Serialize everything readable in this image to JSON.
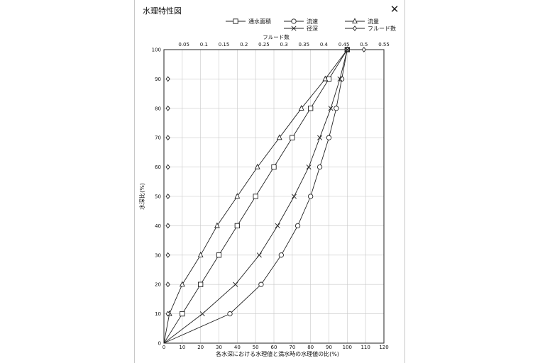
{
  "window": {
    "title": "水理特性図",
    "close_label": "✕"
  },
  "chart_data": {
    "type": "line",
    "title": "",
    "xlabel": "各水深における水理値と満水時の水理値の比(%)",
    "ylabel": "水深比(%)",
    "xlim": [
      0,
      120
    ],
    "ylim": [
      0,
      100
    ],
    "x_ticks": [
      0,
      10,
      20,
      30,
      40,
      50,
      60,
      70,
      80,
      90,
      100,
      110,
      120
    ],
    "y_ticks": [
      0,
      10,
      20,
      30,
      40,
      50,
      60,
      70,
      80,
      90,
      100
    ],
    "top_axis": {
      "label": "フルード数",
      "range": [
        0,
        0.55
      ],
      "ticks": [
        "0.05",
        "0.1",
        "0.15",
        "0.2",
        "0.25",
        "0.3",
        "0.35",
        "0.4",
        "0.45",
        "0.5",
        "0.55"
      ]
    },
    "grid": true,
    "legend_position": "top",
    "series": [
      {
        "name": "通水面積",
        "marker": "square",
        "x": [
          0,
          10,
          20,
          30,
          40,
          50,
          60,
          70,
          80,
          90,
          100
        ],
        "y": [
          0,
          10,
          20,
          30,
          40,
          50,
          60,
          70,
          80,
          90,
          100
        ],
        "line": true
      },
      {
        "name": "流速",
        "marker": "circle",
        "x": [
          0,
          36,
          53,
          64,
          73,
          80,
          85,
          90,
          94,
          97,
          100
        ],
        "y": [
          0,
          10,
          20,
          30,
          40,
          50,
          60,
          70,
          80,
          90,
          100
        ],
        "line": true
      },
      {
        "name": "流量",
        "marker": "triangle",
        "x": [
          0,
          3,
          10,
          20,
          29,
          40,
          51,
          63,
          75,
          88,
          100
        ],
        "y": [
          0,
          10,
          20,
          30,
          40,
          50,
          60,
          70,
          80,
          90,
          100
        ],
        "line": true
      },
      {
        "name": "径深",
        "marker": "x",
        "x": [
          0,
          21,
          39,
          52,
          62,
          71,
          79,
          85,
          91,
          96,
          100
        ],
        "y": [
          0,
          10,
          20,
          30,
          40,
          50,
          60,
          70,
          80,
          90,
          100
        ],
        "line": true
      },
      {
        "name": "フルード数",
        "marker": "diamond",
        "axis": "top",
        "x": [
          0.01,
          0.01,
          0.01,
          0.01,
          0.01,
          0.01,
          0.01,
          0.01,
          0.01,
          0.5
        ],
        "y": [
          10,
          20,
          30,
          40,
          50,
          60,
          70,
          80,
          90,
          100
        ],
        "line": false
      }
    ]
  }
}
